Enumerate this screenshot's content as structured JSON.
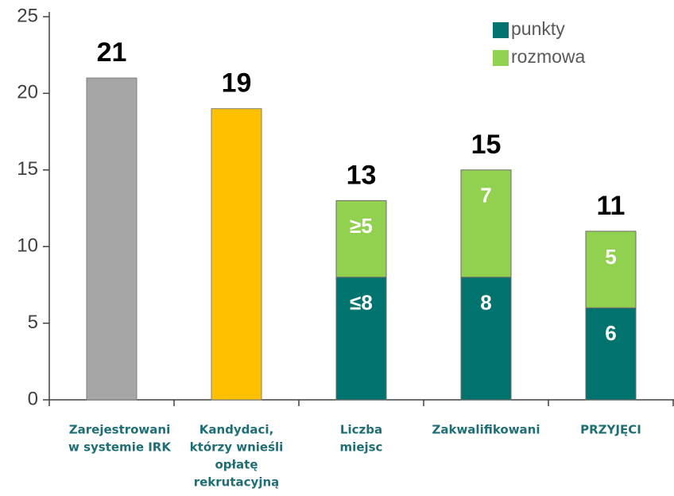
{
  "chart_data": {
    "type": "bar",
    "categories": [
      [
        "Zarejestrowani",
        "w systemie IRK"
      ],
      [
        "Kandydaci,",
        "którzy wnieśli",
        "opłatę",
        "rekrutacyjną"
      ],
      [
        "Liczba",
        "miejsc"
      ],
      [
        "Zakwalifikowani"
      ],
      [
        "PRZYJĘCI"
      ]
    ],
    "values": [
      21,
      19,
      13,
      15,
      11
    ],
    "colors": [
      "#a6a6a6",
      "#ffc000",
      null,
      null,
      null
    ],
    "series": [
      {
        "name": "punkty",
        "color": "#00736e",
        "values": [
          null,
          null,
          8,
          8,
          6
        ],
        "value_labels": [
          null,
          null,
          "≤8",
          "8",
          "6"
        ]
      },
      {
        "name": "rozmowa",
        "color": "#92d050",
        "values": [
          null,
          null,
          5,
          7,
          5
        ],
        "value_labels": [
          null,
          null,
          "≥5",
          "7",
          "5"
        ]
      }
    ],
    "stacked": true,
    "ylim": [
      0,
      25
    ],
    "yticks": [
      0,
      5,
      10,
      15,
      20,
      25
    ],
    "legend": "top-right"
  }
}
